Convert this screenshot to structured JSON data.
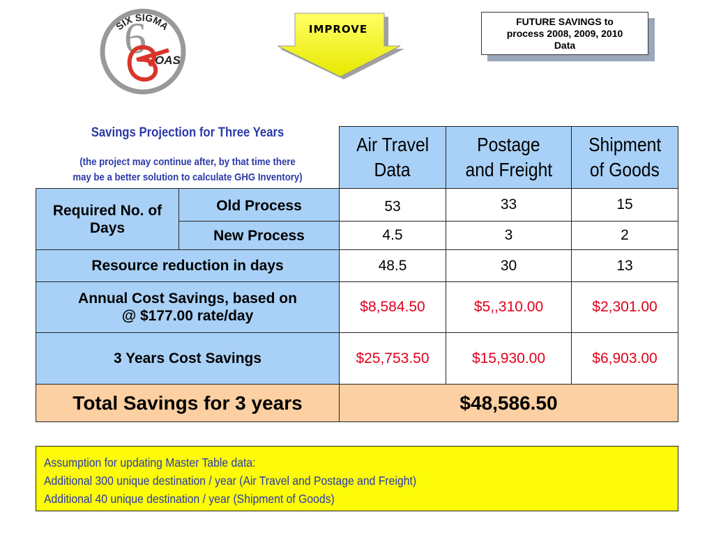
{
  "logo": {
    "top_text": "SIX SIGMA",
    "brand_text": "OAS",
    "icon": "six-sigma-logo-icon"
  },
  "phase": {
    "label": "IMPROVE",
    "icon": "down-arrow-icon",
    "color": "#ffff33"
  },
  "note_box": {
    "lines": [
      "FUTURE SAVINGS to",
      "process 2008, 2009, 2010",
      "Data"
    ]
  },
  "projection": {
    "title": "Savings Projection for Three Years",
    "subtitle_lines": [
      "(the project may continue after, by that time there",
      "may be a better solution to calculate GHG Inventory)"
    ]
  },
  "table": {
    "columns": [
      {
        "lines": [
          "Air Travel",
          "Data"
        ]
      },
      {
        "lines": [
          "Postage",
          "and Freight"
        ]
      },
      {
        "lines": [
          "Shipment",
          "of Goods"
        ]
      }
    ],
    "required_days_label": "Required No. of Days",
    "old_process": {
      "label": "Old Process",
      "values": [
        "53",
        "33",
        "15"
      ]
    },
    "new_process": {
      "label": "New Process",
      "values": [
        "4.5",
        "3",
        "2"
      ]
    },
    "resource_reduction": {
      "label": "Resource reduction in days",
      "values": [
        "48.5",
        "30",
        "13"
      ]
    },
    "annual_savings": {
      "label_lines": [
        "Annual Cost Savings, based on",
        "@ $177.00 rate/day"
      ],
      "values": [
        "$8,584.50",
        "$5,,310.00",
        "$2,301.00"
      ]
    },
    "three_year_savings": {
      "label": "3 Years Cost Savings",
      "values": [
        "$25,753.50",
        "$15,930.00",
        "$6,903.00"
      ]
    },
    "total": {
      "label": "Total Savings for 3 years",
      "value": "$48,586.50"
    },
    "colors": {
      "header_blue": "#a9d1f7",
      "total_peach": "#fcd0a2",
      "money_red": "#e0001b"
    }
  },
  "assumptions": {
    "lines": [
      "Assumption for updating Master Table data:",
      "Additional 300 unique destination / year (Air Travel and Postage and Freight)",
      "Additional 40 unique destination / year (Shipment of Goods)"
    ]
  }
}
